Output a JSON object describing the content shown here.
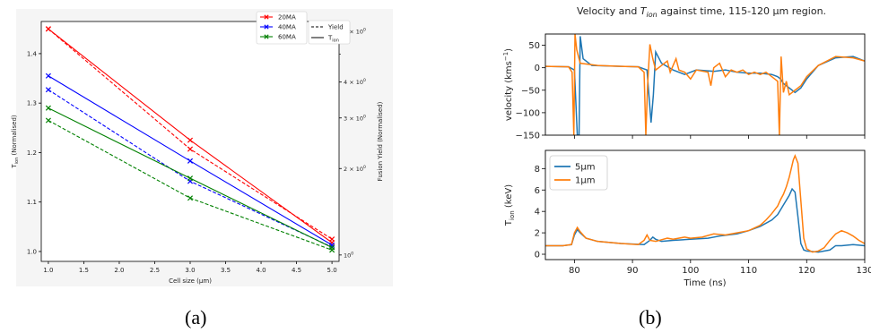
{
  "captions": {
    "a": "(a)",
    "b": "(b)"
  },
  "colors": {
    "red": "#ff0000",
    "blue": "#0000ff",
    "green": "#008000",
    "c5um": "#1f77b4",
    "c1um": "#ff7f0e"
  },
  "chart_data": [
    {
      "type": "line",
      "xlabel": "Cell size (μm)",
      "ylabel": "T_ion (Normalised)",
      "ylabel_parts": {
        "main": "T",
        "sub": "ion",
        "rest": " (Normalised)"
      },
      "y2label": "Fusion Yield (Normalised)",
      "xlim": [
        0.9,
        5.1
      ],
      "ylim": [
        0.98,
        1.465
      ],
      "y2scale": "log",
      "y2lim": [
        0.95,
        6.5
      ],
      "xticks": [
        "1.0",
        "1.5",
        "2.0",
        "2.5",
        "3.0",
        "3.5",
        "4.0",
        "4.5",
        "5.0"
      ],
      "xtick_values": [
        1.0,
        1.5,
        2.0,
        2.5,
        3.0,
        3.5,
        4.0,
        4.5,
        5.0
      ],
      "yticks": [
        "1.0",
        "1.1",
        "1.2",
        "1.3",
        "1.4"
      ],
      "ytick_values": [
        1.0,
        1.1,
        1.2,
        1.3,
        1.4
      ],
      "y2ticks": [
        {
          "value": 1,
          "base": "10",
          "exp": "0",
          "coef": ""
        },
        {
          "value": 2,
          "base": "10",
          "exp": "0",
          "coef": "2 × "
        },
        {
          "value": 3,
          "base": "10",
          "exp": "0",
          "coef": "3 × "
        },
        {
          "value": 4,
          "base": "10",
          "exp": "0",
          "coef": "4 × "
        },
        {
          "value": 6,
          "base": "10",
          "exp": "0",
          "coef": "6 × "
        }
      ],
      "x": [
        1,
        3,
        5
      ],
      "series": [
        {
          "name": "20MA",
          "color": "#ff0000",
          "tion": [
            1.45,
            1.225,
            1.018
          ],
          "yield": [
            1.45,
            1.207,
            1.025
          ]
        },
        {
          "name": "40MA",
          "color": "#0000ff",
          "tion": [
            1.355,
            1.183,
            1.013
          ],
          "yield": [
            1.327,
            1.142,
            1.009
          ]
        },
        {
          "name": "60MA",
          "color": "#008000",
          "tion": [
            1.29,
            1.148,
            1.008
          ],
          "yield": [
            1.265,
            1.108,
            1.003
          ]
        }
      ],
      "legend": [
        {
          "label": "20MA",
          "color": "#ff0000",
          "marker": "x"
        },
        {
          "label": "40MA",
          "color": "#0000ff",
          "marker": "x"
        },
        {
          "label": "60MA",
          "color": "#008000",
          "marker": "x"
        },
        {
          "label": "Yield",
          "style": "dashed"
        },
        {
          "label": "T_ion",
          "style": "solid"
        }
      ],
      "legend_tion_parts": {
        "main": "T",
        "sub": "ion"
      },
      "legend_position": "top-right",
      "grid": false
    },
    {
      "type": "line",
      "title_parts": {
        "pre": "Velocity and ",
        "main": "T",
        "sub": "ion",
        "post": " against time, 115-120 μm region."
      },
      "xlabel": "Time (ns)",
      "xlim": [
        75,
        130
      ],
      "xticks": [
        80,
        90,
        100,
        110,
        120,
        130
      ],
      "grid": false,
      "legend_position": "upper-left of lower panel",
      "panels": [
        {
          "ylabel_parts": {
            "main": "velocity (kms",
            "sup": "−1",
            "post": ")"
          },
          "ylim": [
            -150,
            75
          ],
          "yticks": [
            50,
            0,
            -50,
            -100,
            -150
          ],
          "series": [
            {
              "name": "5μm",
              "color": "#1f77b4",
              "points": [
                [
                  75,
                  3
                ],
                [
                  79,
                  2
                ],
                [
                  80,
                  -5
                ],
                [
                  80.5,
                  -150
                ],
                [
                  80.8,
                  -150
                ],
                [
                  81,
                  70
                ],
                [
                  81.5,
                  20
                ],
                [
                  83,
                  5
                ],
                [
                  88,
                  3
                ],
                [
                  91,
                  2
                ],
                [
                  92.5,
                  -5
                ],
                [
                  93.2,
                  -122
                ],
                [
                  93.6,
                  -60
                ],
                [
                  94,
                  35
                ],
                [
                  95,
                  10
                ],
                [
                  97,
                  -5
                ],
                [
                  99,
                  -15
                ],
                [
                  101,
                  -5
                ],
                [
                  104,
                  -8
                ],
                [
                  106,
                  -5
                ],
                [
                  108,
                  -10
                ],
                [
                  110,
                  -12
                ],
                [
                  112,
                  -12
                ],
                [
                  114,
                  -15
                ],
                [
                  115,
                  -20
                ],
                [
                  115.5,
                  -25
                ],
                [
                  116,
                  -35
                ],
                [
                  117,
                  -45
                ],
                [
                  118,
                  -55
                ],
                [
                  119,
                  -45
                ],
                [
                  120,
                  -25
                ],
                [
                  122,
                  5
                ],
                [
                  125,
                  22
                ],
                [
                  128,
                  25
                ],
                [
                  130,
                  15
                ]
              ]
            },
            {
              "name": "1μm",
              "color": "#ff7f0e",
              "points": [
                [
                  75,
                  3
                ],
                [
                  79,
                  2
                ],
                [
                  79.6,
                  -10
                ],
                [
                  79.9,
                  -150
                ],
                [
                  80.1,
                  75
                ],
                [
                  80.4,
                  40
                ],
                [
                  81,
                  10
                ],
                [
                  84,
                  5
                ],
                [
                  88,
                  3
                ],
                [
                  91,
                  2
                ],
                [
                  92,
                  -10
                ],
                [
                  92.3,
                  -150
                ],
                [
                  92.6,
                  -40
                ],
                [
                  93,
                  52
                ],
                [
                  93.5,
                  20
                ],
                [
                  94,
                  -5
                ],
                [
                  95,
                  5
                ],
                [
                  96,
                  15
                ],
                [
                  96.5,
                  -10
                ],
                [
                  97.5,
                  20
                ],
                [
                  98,
                  -5
                ],
                [
                  99,
                  -10
                ],
                [
                  100,
                  -25
                ],
                [
                  101,
                  -5
                ],
                [
                  103,
                  -10
                ],
                [
                  103.5,
                  -40
                ],
                [
                  104,
                  0
                ],
                [
                  105,
                  10
                ],
                [
                  106,
                  -20
                ],
                [
                  107,
                  -5
                ],
                [
                  108,
                  -10
                ],
                [
                  109,
                  -5
                ],
                [
                  110,
                  -15
                ],
                [
                  111,
                  -10
                ],
                [
                  112,
                  -15
                ],
                [
                  113,
                  -10
                ],
                [
                  114,
                  -20
                ],
                [
                  115,
                  -30
                ],
                [
                  115.3,
                  -150
                ],
                [
                  115.6,
                  25
                ],
                [
                  116,
                  -55
                ],
                [
                  116.5,
                  -30
                ],
                [
                  117,
                  -60
                ],
                [
                  118,
                  -50
                ],
                [
                  119,
                  -40
                ],
                [
                  120,
                  -20
                ],
                [
                  122,
                  5
                ],
                [
                  125,
                  25
                ],
                [
                  128,
                  22
                ],
                [
                  130,
                  15
                ]
              ]
            }
          ]
        },
        {
          "ylabel_parts": {
            "main": "T",
            "sub": "ion",
            "post": " (keV)"
          },
          "ylim": [
            -0.5,
            9.7
          ],
          "yticks": [
            0,
            2,
            4,
            6,
            8
          ],
          "series": [
            {
              "name": "5μm",
              "color": "#1f77b4",
              "points": [
                [
                  75,
                  0.8
                ],
                [
                  78,
                  0.8
                ],
                [
                  79.5,
                  0.9
                ],
                [
                  80,
                  1.8
                ],
                [
                  80.5,
                  2.3
                ],
                [
                  81,
                  2.0
                ],
                [
                  82,
                  1.5
                ],
                [
                  84,
                  1.2
                ],
                [
                  88,
                  1.0
                ],
                [
                  92,
                  0.9
                ],
                [
                  93,
                  1.3
                ],
                [
                  93.5,
                  1.6
                ],
                [
                  94,
                  1.4
                ],
                [
                  95,
                  1.2
                ],
                [
                  97,
                  1.3
                ],
                [
                  100,
                  1.4
                ],
                [
                  103,
                  1.5
                ],
                [
                  105,
                  1.7
                ],
                [
                  108,
                  1.9
                ],
                [
                  110,
                  2.2
                ],
                [
                  112,
                  2.6
                ],
                [
                  114,
                  3.2
                ],
                [
                  115,
                  3.7
                ],
                [
                  116,
                  4.6
                ],
                [
                  117,
                  5.5
                ],
                [
                  117.5,
                  6.1
                ],
                [
                  118,
                  5.8
                ],
                [
                  118.5,
                  3.5
                ],
                [
                  119,
                  1.0
                ],
                [
                  119.5,
                  0.4
                ],
                [
                  120,
                  0.3
                ],
                [
                  122,
                  0.2
                ],
                [
                  124,
                  0.4
                ],
                [
                  125,
                  0.8
                ],
                [
                  126,
                  0.8
                ],
                [
                  128,
                  0.9
                ],
                [
                  130,
                  0.8
                ]
              ]
            },
            {
              "name": "1μm",
              "color": "#ff7f0e",
              "points": [
                [
                  75,
                  0.8
                ],
                [
                  78,
                  0.8
                ],
                [
                  79.5,
                  0.9
                ],
                [
                  80,
                  2.0
                ],
                [
                  80.5,
                  2.5
                ],
                [
                  81,
                  2.1
                ],
                [
                  82,
                  1.5
                ],
                [
                  84,
                  1.2
                ],
                [
                  88,
                  1.0
                ],
                [
                  91,
                  0.9
                ],
                [
                  92,
                  1.3
                ],
                [
                  92.5,
                  1.8
                ],
                [
                  93,
                  1.3
                ],
                [
                  94,
                  1.2
                ],
                [
                  96,
                  1.5
                ],
                [
                  97,
                  1.4
                ],
                [
                  99,
                  1.6
                ],
                [
                  100,
                  1.5
                ],
                [
                  102,
                  1.6
                ],
                [
                  104,
                  1.9
                ],
                [
                  106,
                  1.8
                ],
                [
                  108,
                  2.0
                ],
                [
                  110,
                  2.2
                ],
                [
                  112,
                  2.7
                ],
                [
                  113,
                  3.2
                ],
                [
                  114,
                  3.8
                ],
                [
                  115,
                  4.5
                ],
                [
                  115.5,
                  5.1
                ],
                [
                  116,
                  5.6
                ],
                [
                  116.5,
                  6.3
                ],
                [
                  117,
                  7.2
                ],
                [
                  117.7,
                  8.8
                ],
                [
                  118,
                  9.2
                ],
                [
                  118.5,
                  8.5
                ],
                [
                  119,
                  5.0
                ],
                [
                  119.5,
                  1.5
                ],
                [
                  120,
                  0.5
                ],
                [
                  121,
                  0.2
                ],
                [
                  122,
                  0.3
                ],
                [
                  123,
                  0.6
                ],
                [
                  124,
                  1.3
                ],
                [
                  125,
                  1.9
                ],
                [
                  126,
                  2.2
                ],
                [
                  127,
                  2.0
                ],
                [
                  128,
                  1.7
                ],
                [
                  129,
                  1.3
                ],
                [
                  130,
                  1.0
                ]
              ]
            }
          ],
          "legend": [
            {
              "label": "5μm",
              "color": "#1f77b4"
            },
            {
              "label": "1μm",
              "color": "#ff7f0e"
            }
          ]
        }
      ]
    }
  ]
}
